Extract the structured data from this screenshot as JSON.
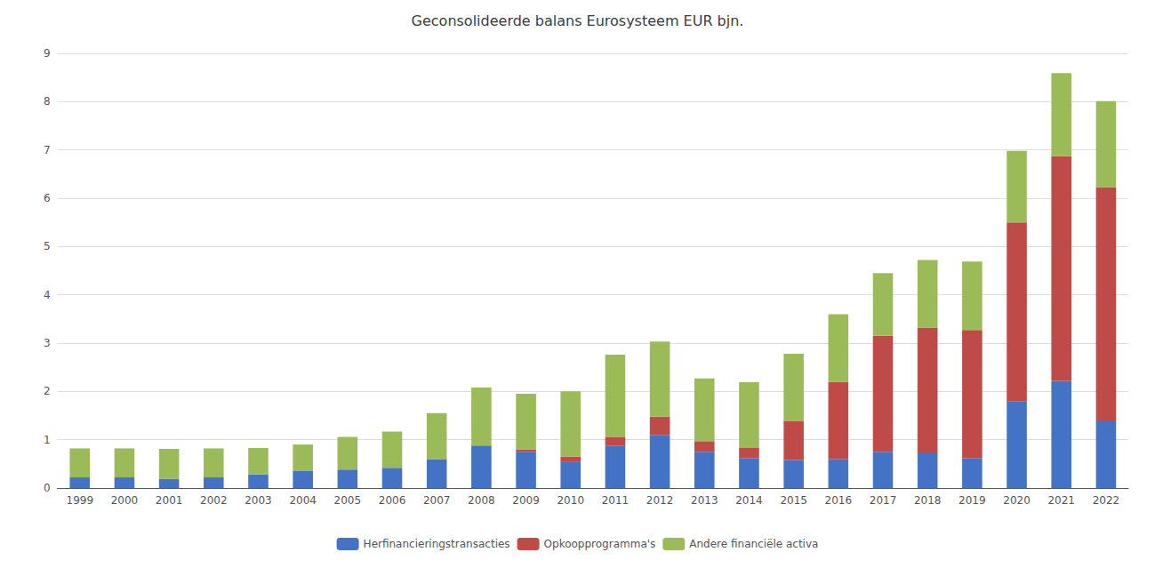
{
  "chart_data": {
    "type": "bar",
    "title": "Geconsolideerde balans Eurosysteem EUR bjn.",
    "categories": [
      "1999",
      "2000",
      "2001",
      "2002",
      "2003",
      "2004",
      "2005",
      "2006",
      "2007",
      "2008",
      "2009",
      "2010",
      "2011",
      "2012",
      "2013",
      "2014",
      "2015",
      "2016",
      "2017",
      "2018",
      "2019",
      "2020",
      "2021",
      "2022"
    ],
    "series": [
      {
        "name": "Herfinancieringstransacties",
        "color": "#4472C4",
        "values": [
          0.22,
          0.22,
          0.19,
          0.22,
          0.28,
          0.35,
          0.38,
          0.42,
          0.6,
          0.88,
          0.75,
          0.55,
          0.88,
          1.1,
          0.75,
          0.62,
          0.58,
          0.6,
          0.75,
          0.72,
          0.62,
          1.8,
          2.22,
          1.38
        ]
      },
      {
        "name": "Opkoopprogramma's",
        "color": "#BE4B48",
        "values": [
          0.0,
          0.0,
          0.0,
          0.0,
          0.0,
          0.0,
          0.0,
          0.0,
          0.0,
          0.0,
          0.05,
          0.1,
          0.18,
          0.38,
          0.22,
          0.22,
          0.8,
          1.6,
          2.4,
          2.6,
          2.65,
          3.7,
          4.65,
          4.85
        ]
      },
      {
        "name": "Andere financiële activa",
        "color": "#9BBB59",
        "values": [
          0.6,
          0.6,
          0.62,
          0.6,
          0.55,
          0.55,
          0.68,
          0.75,
          0.95,
          1.2,
          1.15,
          1.35,
          1.7,
          1.55,
          1.3,
          1.35,
          1.4,
          1.4,
          1.3,
          1.4,
          1.42,
          1.48,
          1.72,
          1.78
        ]
      }
    ],
    "stacked": true,
    "ylim": [
      0,
      9
    ],
    "yticks": [
      0,
      1,
      2,
      3,
      4,
      5,
      6,
      7,
      8,
      9
    ],
    "grid": true,
    "legend": "bottom"
  }
}
